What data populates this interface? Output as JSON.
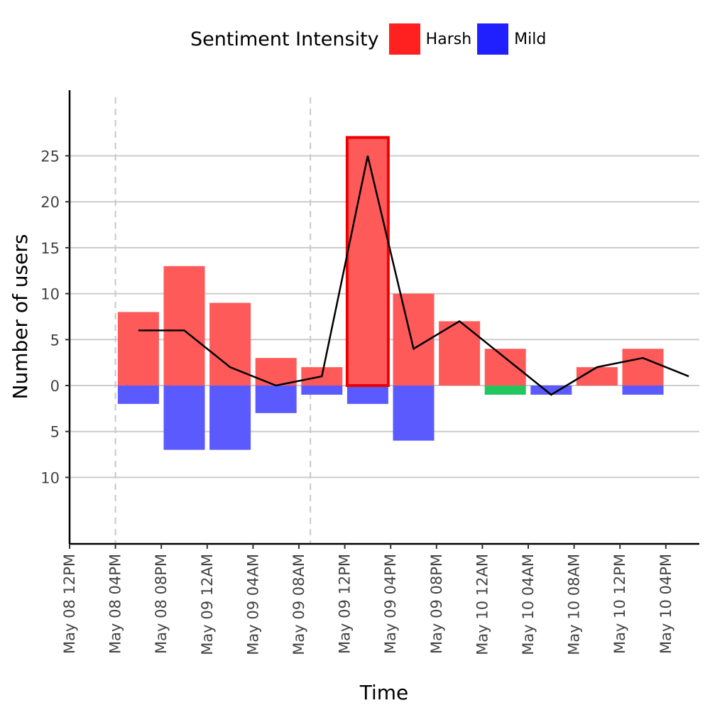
{
  "chart_data": {
    "type": "bar",
    "title": "",
    "xlabel": "Time",
    "ylabel": "Number of users",
    "legend": {
      "title": "Sentiment Intensity",
      "placement": "top",
      "items": [
        {
          "label": "Harsh",
          "color": "#ff2020"
        },
        {
          "label": "Mild",
          "color": "#2020ff"
        }
      ]
    },
    "x_ticks": [
      "May 08 12PM",
      "May 08 04PM",
      "May 08 08PM",
      "May 09 12AM",
      "May 09 04AM",
      "May 09 08AM",
      "May 09 12PM",
      "May 09 04PM",
      "May 09 08PM",
      "May 10 12AM",
      "May 10 04AM",
      "May 10 08AM",
      "May 10 12PM",
      "May 10 04PM"
    ],
    "y_ticks": [
      {
        "value": 25,
        "label": "25"
      },
      {
        "value": 20,
        "label": "20"
      },
      {
        "value": 15,
        "label": "15"
      },
      {
        "value": 10,
        "label": "10"
      },
      {
        "value": 5,
        "label": "5"
      },
      {
        "value": 0,
        "label": "0"
      },
      {
        "value": -5,
        "label": "5"
      },
      {
        "value": -10,
        "label": "10"
      }
    ],
    "ylim": [
      -17,
      32.5
    ],
    "xlim_hours": [
      0,
      55
    ],
    "grid": "horizontal",
    "bars": [
      {
        "start": "May 08 04PM",
        "end": "May 08 08PM",
        "harsh": 8,
        "mild": 2,
        "other": 0,
        "line": 6
      },
      {
        "start": "May 08 08PM",
        "end": "May 09 12AM",
        "harsh": 13,
        "mild": 7,
        "other": 0,
        "line": 6
      },
      {
        "start": "May 09 12AM",
        "end": "May 09 04AM",
        "harsh": 9,
        "mild": 7,
        "other": 0,
        "line": 2
      },
      {
        "start": "May 09 04AM",
        "end": "May 09 08AM",
        "harsh": 3,
        "mild": 3,
        "other": 0,
        "line": 0
      },
      {
        "start": "May 09 08AM",
        "end": "May 09 12PM",
        "harsh": 2,
        "mild": 1,
        "other": 0,
        "line": 1
      },
      {
        "start": "May 09 12PM",
        "end": "May 09 04PM",
        "harsh": 27,
        "mild": 2,
        "other": 0,
        "line": 25,
        "highlight": true
      },
      {
        "start": "May 09 04PM",
        "end": "May 09 08PM",
        "harsh": 10,
        "mild": 6,
        "other": 0,
        "line": 4
      },
      {
        "start": "May 09 08PM",
        "end": "May 10 12AM",
        "harsh": 7,
        "mild": 0,
        "other": 0,
        "line": 7
      },
      {
        "start": "May 10 12AM",
        "end": "May 10 04AM",
        "harsh": 4,
        "mild": 0,
        "other": 1,
        "line": 3
      },
      {
        "start": "May 10 04AM",
        "end": "May 10 08AM",
        "harsh": 0,
        "mild": 1,
        "other": 0,
        "line": -1
      },
      {
        "start": "May 10 08AM",
        "end": "May 10 12PM",
        "harsh": 2,
        "mild": 0,
        "other": 0,
        "line": 2
      },
      {
        "start": "May 10 12PM",
        "end": "May 10 04PM",
        "harsh": 4,
        "mild": 1,
        "other": 0,
        "line": 3
      },
      {
        "start": "May 10 04PM",
        "end": "May 10 08PM",
        "harsh": 0,
        "mild": 0,
        "other": 0,
        "line": 1
      }
    ],
    "reference_lines": [
      "May 08 04PM",
      "May 09 09AM"
    ],
    "colors": {
      "harsh_bar": "#ff5a5a",
      "mild_bar": "#5a5aff",
      "other_bar": "#22c55e",
      "highlight_stroke": "#ee0000",
      "line": "#000000",
      "grid": "#cccccc",
      "reference_line": "#c8c8c8"
    }
  }
}
